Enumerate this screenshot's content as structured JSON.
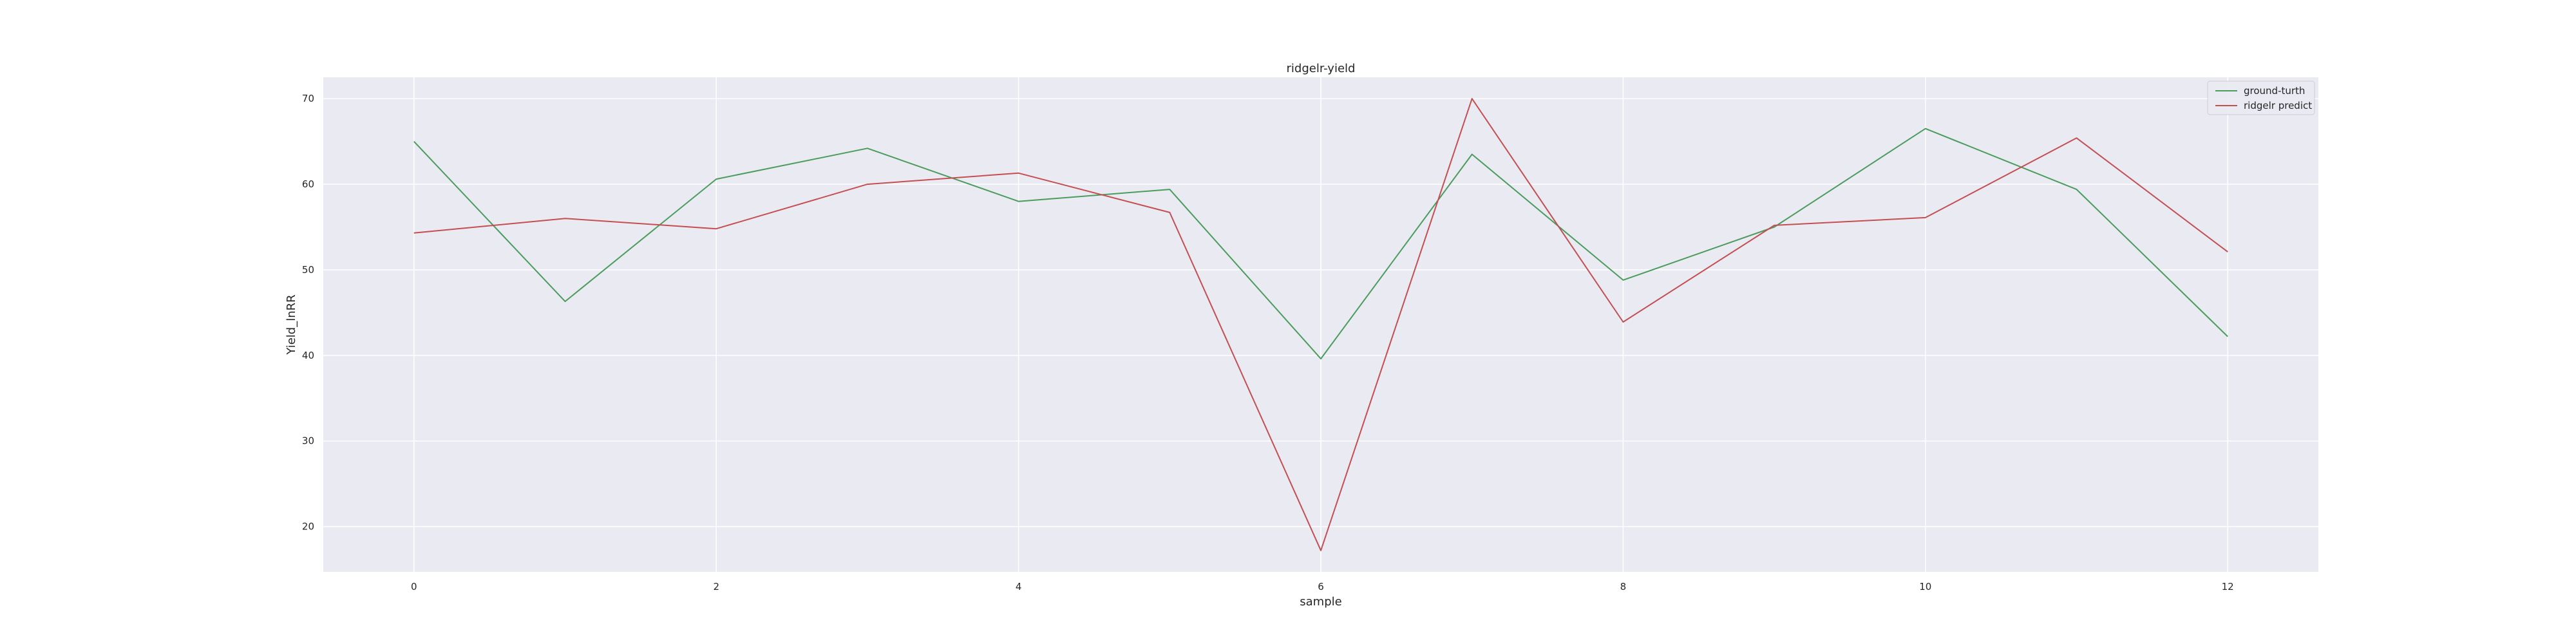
{
  "chart_data": {
    "type": "line",
    "title": "ridgelr-yield",
    "xlabel": "sample",
    "ylabel": "Yield_lnRR",
    "xlim": [
      -0.6,
      12.6
    ],
    "ylim": [
      14.7,
      72.5
    ],
    "xticks": [
      0,
      2,
      4,
      6,
      8,
      10,
      12
    ],
    "yticks": [
      20,
      30,
      40,
      50,
      60,
      70
    ],
    "grid": true,
    "legend_position": "top-right",
    "x": [
      0,
      1,
      2,
      3,
      4,
      5,
      6,
      7,
      8,
      9,
      10,
      11,
      12
    ],
    "series": [
      {
        "name": "ground-turth",
        "color": "#4a9c5d",
        "values": [
          65.0,
          46.3,
          60.6,
          64.2,
          58.0,
          59.4,
          39.6,
          63.5,
          48.8,
          55.0,
          66.5,
          59.4,
          42.2
        ]
      },
      {
        "name": "ridgelr predict",
        "color": "#c44e52",
        "values": [
          54.3,
          56.0,
          54.8,
          60.0,
          61.3,
          56.7,
          17.2,
          70.0,
          43.9,
          55.2,
          56.1,
          65.4,
          52.1
        ]
      }
    ]
  }
}
